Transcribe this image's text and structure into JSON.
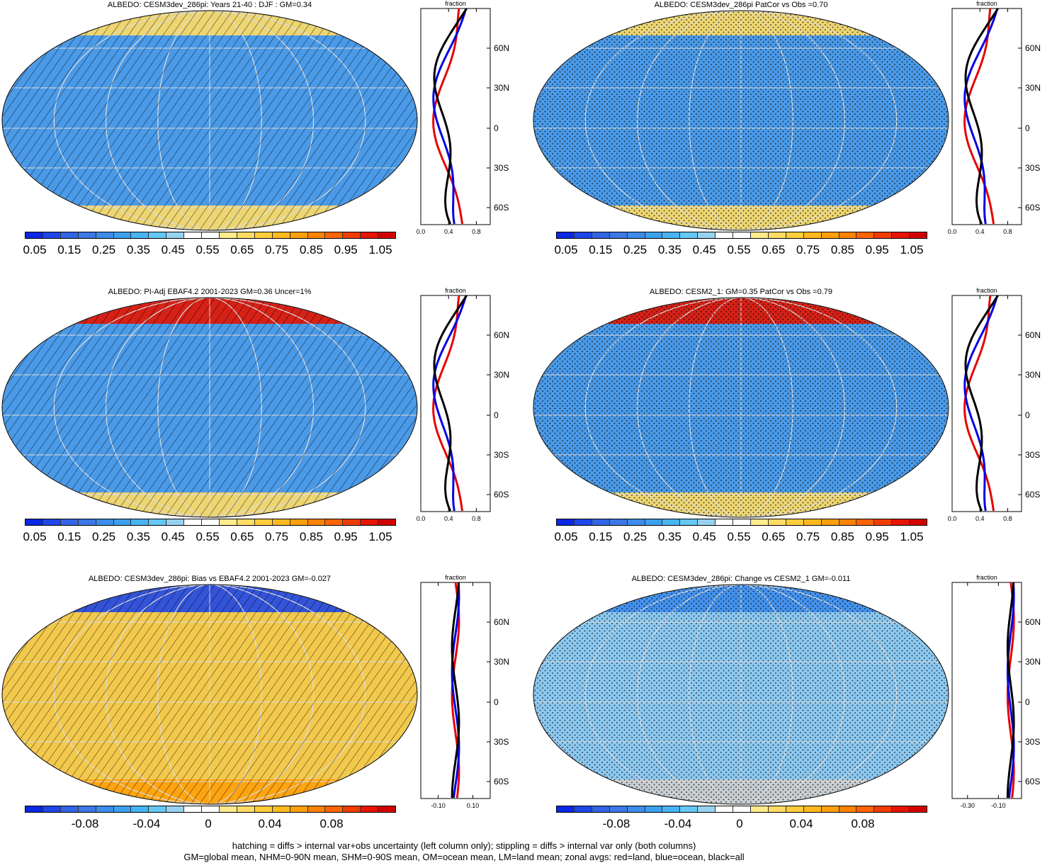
{
  "footer": {
    "line1": "hatching = diffs > internal var+obs uncertainty (left column only); stippling = diffs > internal var only (both columns)",
    "line2": "GM=global mean, NHM=0-90N mean, SHM=0-90S mean, OM=ocean mean, LM=land mean; zonal avgs: red=land, blue=ocean, black=all"
  },
  "colormaps": {
    "abs": [
      "#0a28e6",
      "#1e46e8",
      "#3264e6",
      "#3c78e6",
      "#3c8cec",
      "#3ca0f0",
      "#46b4f5",
      "#64c8f5",
      "#96d2f0",
      "#ffffff",
      "#ffffff",
      "#ffeb8c",
      "#ffdc64",
      "#ffcd3c",
      "#ffb91e",
      "#ffa00a",
      "#ff8200",
      "#ff6400",
      "#f03c00",
      "#e61400",
      "#d20000"
    ],
    "diff": [
      "#0a28e6",
      "#1e46e8",
      "#3264e6",
      "#3c78e6",
      "#3c8cec",
      "#3ca0f0",
      "#46b4f5",
      "#64c8f5",
      "#96d2f0",
      "#ffffff",
      "#ffffff",
      "#ffeb8c",
      "#ffdc64",
      "#ffcd3c",
      "#ffb91e",
      "#ffa00a",
      "#ff8200",
      "#ff6400",
      "#f03c00",
      "#e61400",
      "#d20000"
    ]
  },
  "panels": [
    {
      "id": "p1",
      "title": "ALBEDO: CESM3dev_286pi: Years 21-40 : DJF : GM=0.34",
      "cmap": "abs",
      "fill": "#4a9ae8",
      "pattern": "hatch",
      "cb_labels": [
        "0.05",
        "0.15",
        "0.25",
        "0.35",
        "0.45",
        "0.55",
        "0.65",
        "0.75",
        "0.85",
        "0.95",
        "1.05"
      ],
      "zonal_ticks_x": [
        "0.0",
        "0.4",
        "0.8"
      ],
      "zonal_x_values": [
        0.0,
        0.4,
        0.8
      ],
      "zonal_xrange": [
        0.0,
        1.0
      ],
      "lat_labels": [
        "60N",
        "30N",
        "0",
        "30S",
        "60S"
      ],
      "fraction_label": "fraction"
    },
    {
      "id": "p2",
      "title": "ALBEDO: CESM3dev_286pi PatCor vs Obs =0.70",
      "cmap": "abs",
      "fill": "#4a9ae8",
      "pattern": "stipple",
      "cb_labels": [
        "0.05",
        "0.15",
        "0.25",
        "0.35",
        "0.45",
        "0.55",
        "0.65",
        "0.75",
        "0.85",
        "0.95",
        "1.05"
      ],
      "zonal_ticks_x": [
        "0.0",
        "0.4",
        "0.8"
      ],
      "zonal_x_values": [
        0.0,
        0.4,
        0.8
      ],
      "zonal_xrange": [
        0.0,
        1.0
      ],
      "lat_labels": [
        "60N",
        "30N",
        "0",
        "30S",
        "60S"
      ],
      "fraction_label": "fraction"
    },
    {
      "id": "p3",
      "title": "ALBEDO: PI-Adj EBAF4.2 2001-2023 GM=0.36 Uncer=1%",
      "cmap": "abs",
      "fill": "#4a9ae8",
      "pattern": "hatch",
      "cb_labels": [
        "0.05",
        "0.15",
        "0.25",
        "0.35",
        "0.45",
        "0.55",
        "0.65",
        "0.75",
        "0.85",
        "0.95",
        "1.05"
      ],
      "zonal_ticks_x": [
        "0.0",
        "0.4",
        "0.8"
      ],
      "zonal_x_values": [
        0.0,
        0.4,
        0.8
      ],
      "zonal_xrange": [
        0.0,
        1.0
      ],
      "lat_labels": [
        "60N",
        "30N",
        "0",
        "30S",
        "60S"
      ],
      "fraction_label": "fraction"
    },
    {
      "id": "p4",
      "title": "ALBEDO: CESM2_1: GM=0.35 PatCor vs Obs =0.79",
      "cmap": "abs",
      "fill": "#4a9ae8",
      "pattern": "stipple",
      "cb_labels": [
        "0.05",
        "0.15",
        "0.25",
        "0.35",
        "0.45",
        "0.55",
        "0.65",
        "0.75",
        "0.85",
        "0.95",
        "1.05"
      ],
      "zonal_ticks_x": [
        "0.0",
        "0.4",
        "0.8"
      ],
      "zonal_x_values": [
        0.0,
        0.4,
        0.8
      ],
      "zonal_xrange": [
        0.0,
        1.0
      ],
      "lat_labels": [
        "60N",
        "30N",
        "0",
        "30S",
        "60S"
      ],
      "fraction_label": "fraction"
    },
    {
      "id": "p5",
      "title": "ALBEDO: CESM3dev_286pi: Bias vs EBAF4.2 2001-2023 GM=-0.027",
      "cmap": "diff",
      "fill": "#f2c94c",
      "pattern": "hatch",
      "cb_labels": [
        "-0.08",
        "-0.04",
        "0",
        "0.04",
        "0.08"
      ],
      "zonal_ticks_x": [
        "-0.10",
        "0.10"
      ],
      "zonal_x_values": [
        -0.1,
        0.1
      ],
      "zonal_xrange": [
        -0.2,
        0.2
      ],
      "lat_labels": [
        "60N",
        "30N",
        "0",
        "30S",
        "60S"
      ],
      "fraction_label": "fraction"
    },
    {
      "id": "p6",
      "title": "ALBEDO: CESM3dev_286pi: Change vs CESM2_1 GM=-0.011",
      "cmap": "diff",
      "fill": "#8cc8f0",
      "pattern": "stipple",
      "cb_labels": [
        "-0.08",
        "-0.04",
        "0",
        "0.04",
        "0.08"
      ],
      "zonal_ticks_x": [
        "-0.30",
        "-0.10"
      ],
      "zonal_x_values": [
        -0.3,
        -0.1
      ],
      "zonal_xrange": [
        -0.4,
        0.05
      ],
      "lat_labels": [
        "60N",
        "30N",
        "0",
        "30S",
        "60S"
      ],
      "fraction_label": "fraction"
    }
  ]
}
